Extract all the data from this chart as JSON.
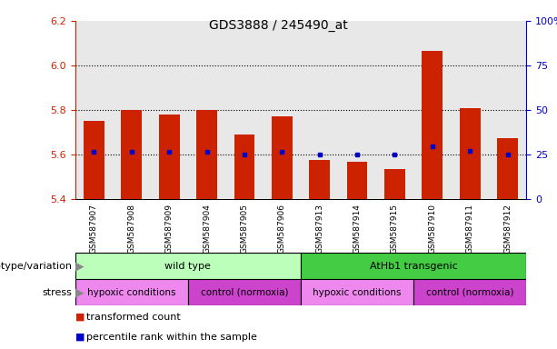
{
  "title": "GDS3888 / 245490_at",
  "samples": [
    "GSM587907",
    "GSM587908",
    "GSM587909",
    "GSM587904",
    "GSM587905",
    "GSM587906",
    "GSM587913",
    "GSM587914",
    "GSM587915",
    "GSM587910",
    "GSM587911",
    "GSM587912"
  ],
  "transformed_count": [
    5.75,
    5.8,
    5.78,
    5.8,
    5.69,
    5.77,
    5.575,
    5.565,
    5.535,
    6.065,
    5.81,
    5.675
  ],
  "percentile_rank": [
    5.61,
    5.61,
    5.61,
    5.61,
    5.6,
    5.61,
    5.6,
    5.6,
    5.6,
    5.635,
    5.615,
    5.6
  ],
  "ylim_left": [
    5.4,
    6.2
  ],
  "ylim_right": [
    0,
    100
  ],
  "yticks_left": [
    5.4,
    5.6,
    5.8,
    6.0,
    6.2
  ],
  "yticks_right": [
    0,
    25,
    50,
    75,
    100
  ],
  "bar_color": "#cc2200",
  "dot_color": "#0000cc",
  "baseline": 5.4,
  "genotype_groups": [
    {
      "label": "wild type",
      "start": 0,
      "end": 6,
      "color": "#bbffbb"
    },
    {
      "label": "AtHb1 transgenic",
      "start": 6,
      "end": 12,
      "color": "#44cc44"
    }
  ],
  "stress_groups": [
    {
      "label": "hypoxic conditions",
      "start": 0,
      "end": 3,
      "color": "#ee88ee"
    },
    {
      "label": "control (normoxia)",
      "start": 3,
      "end": 6,
      "color": "#cc44cc"
    },
    {
      "label": "hypoxic conditions",
      "start": 6,
      "end": 9,
      "color": "#ee88ee"
    },
    {
      "label": "control (normoxia)",
      "start": 9,
      "end": 12,
      "color": "#cc44cc"
    }
  ],
  "legend_items": [
    {
      "label": "transformed count",
      "color": "#cc2200"
    },
    {
      "label": "percentile rank within the sample",
      "color": "#0000cc"
    }
  ],
  "grid_yticks": [
    5.6,
    5.8,
    6.0
  ],
  "bar_width": 0.55,
  "background_color": "#ffffff",
  "plot_bg_color": "#e8e8e8",
  "tick_bg_color": "#d0d0d0"
}
